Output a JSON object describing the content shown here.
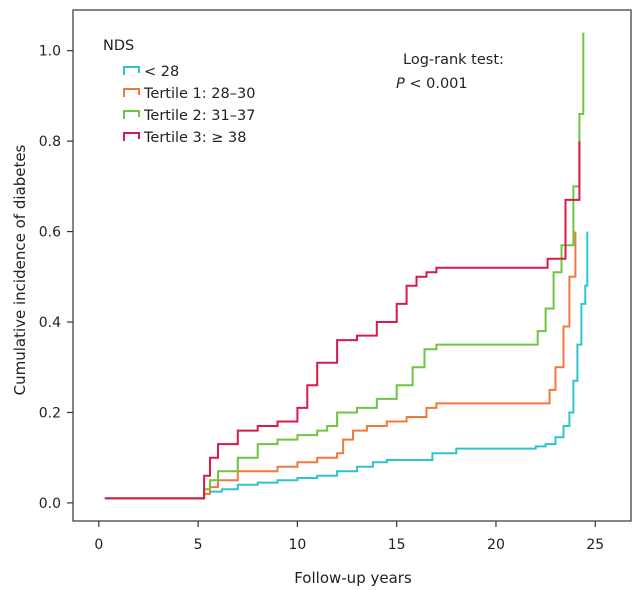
{
  "chart_data": {
    "type": "line",
    "step": true,
    "title": "",
    "xlabel": "Follow-up years",
    "ylabel": "Cumulative incidence of diabetes",
    "xlim": [
      -1.3,
      26.8
    ],
    "ylim": [
      -0.04,
      1.09
    ],
    "xticks": [
      0,
      5,
      10,
      15,
      20,
      25
    ],
    "yticks": [
      0.0,
      0.2,
      0.4,
      0.6,
      0.8,
      1.0
    ],
    "xtick_labels": [
      "0",
      "5",
      "10",
      "15",
      "20",
      "25"
    ],
    "ytick_labels": [
      "0.0",
      "0.2",
      "0.4",
      "0.6",
      "0.8",
      "1.0"
    ],
    "legend": {
      "title": "NDS",
      "placement": "top-left"
    },
    "annotation": {
      "line1": "Log-rank test:",
      "line2_italic": "P",
      "line2_rest": " < 0.001"
    },
    "series": [
      {
        "name": "< 28",
        "color": "#2ec4cf",
        "points": [
          [
            0.3,
            0.01
          ],
          [
            5.1,
            0.01
          ],
          [
            5.3,
            0.02
          ],
          [
            5.6,
            0.025
          ],
          [
            6.2,
            0.03
          ],
          [
            7.0,
            0.04
          ],
          [
            8.0,
            0.045
          ],
          [
            9.0,
            0.05
          ],
          [
            10.0,
            0.055
          ],
          [
            11.0,
            0.06
          ],
          [
            12.0,
            0.07
          ],
          [
            13.0,
            0.08
          ],
          [
            13.8,
            0.09
          ],
          [
            14.5,
            0.095
          ],
          [
            16.0,
            0.095
          ],
          [
            16.8,
            0.11
          ],
          [
            18.0,
            0.12
          ],
          [
            19.0,
            0.12
          ],
          [
            21.0,
            0.12
          ],
          [
            22.0,
            0.125
          ],
          [
            22.5,
            0.13
          ],
          [
            23.0,
            0.145
          ],
          [
            23.4,
            0.17
          ],
          [
            23.7,
            0.2
          ],
          [
            23.9,
            0.27
          ],
          [
            24.1,
            0.35
          ],
          [
            24.3,
            0.44
          ],
          [
            24.5,
            0.48
          ],
          [
            24.6,
            0.6
          ]
        ]
      },
      {
        "name": "Tertile 1: 28–30",
        "color": "#f07a3c",
        "points": [
          [
            0.3,
            0.01
          ],
          [
            5.1,
            0.01
          ],
          [
            5.3,
            0.02
          ],
          [
            5.6,
            0.035
          ],
          [
            6.0,
            0.05
          ],
          [
            7.0,
            0.07
          ],
          [
            8.0,
            0.07
          ],
          [
            9.0,
            0.08
          ],
          [
            10.0,
            0.09
          ],
          [
            11.0,
            0.1
          ],
          [
            12.0,
            0.11
          ],
          [
            12.3,
            0.14
          ],
          [
            12.8,
            0.16
          ],
          [
            13.5,
            0.17
          ],
          [
            14.5,
            0.18
          ],
          [
            15.5,
            0.19
          ],
          [
            16.5,
            0.21
          ],
          [
            17.0,
            0.22
          ],
          [
            18.5,
            0.22
          ],
          [
            20.0,
            0.22
          ],
          [
            21.0,
            0.22
          ],
          [
            22.2,
            0.22
          ],
          [
            22.7,
            0.25
          ],
          [
            23.0,
            0.3
          ],
          [
            23.4,
            0.39
          ],
          [
            23.7,
            0.5
          ],
          [
            24.0,
            0.6
          ]
        ]
      },
      {
        "name": "Tertile 2: 31–37",
        "color": "#6cc640",
        "points": [
          [
            0.3,
            0.01
          ],
          [
            5.1,
            0.01
          ],
          [
            5.3,
            0.03
          ],
          [
            5.6,
            0.05
          ],
          [
            6.0,
            0.07
          ],
          [
            7.0,
            0.1
          ],
          [
            8.0,
            0.13
          ],
          [
            9.0,
            0.14
          ],
          [
            10.0,
            0.15
          ],
          [
            11.0,
            0.16
          ],
          [
            11.5,
            0.17
          ],
          [
            12.0,
            0.2
          ],
          [
            13.0,
            0.21
          ],
          [
            14.0,
            0.23
          ],
          [
            15.0,
            0.26
          ],
          [
            15.8,
            0.3
          ],
          [
            16.4,
            0.34
          ],
          [
            17.0,
            0.35
          ],
          [
            18.0,
            0.35
          ],
          [
            19.0,
            0.35
          ],
          [
            20.0,
            0.35
          ],
          [
            21.8,
            0.35
          ],
          [
            22.1,
            0.38
          ],
          [
            22.5,
            0.43
          ],
          [
            22.9,
            0.51
          ],
          [
            23.3,
            0.57
          ],
          [
            23.6,
            0.57
          ],
          [
            23.9,
            0.7
          ],
          [
            24.2,
            0.86
          ],
          [
            24.4,
            1.04
          ]
        ]
      },
      {
        "name": "Tertile 3: ≥ 38",
        "color": "#d81b4a",
        "points": [
          [
            0.3,
            0.01
          ],
          [
            5.1,
            0.01
          ],
          [
            5.3,
            0.06
          ],
          [
            5.6,
            0.1
          ],
          [
            6.0,
            0.13
          ],
          [
            7.0,
            0.16
          ],
          [
            8.0,
            0.17
          ],
          [
            9.0,
            0.18
          ],
          [
            10.0,
            0.21
          ],
          [
            10.5,
            0.26
          ],
          [
            11.0,
            0.31
          ],
          [
            12.0,
            0.36
          ],
          [
            13.0,
            0.37
          ],
          [
            14.0,
            0.4
          ],
          [
            15.0,
            0.44
          ],
          [
            15.5,
            0.48
          ],
          [
            16.0,
            0.5
          ],
          [
            16.5,
            0.51
          ],
          [
            17.0,
            0.52
          ],
          [
            18.0,
            0.52
          ],
          [
            20.0,
            0.52
          ],
          [
            21.0,
            0.52
          ],
          [
            22.0,
            0.52
          ],
          [
            22.6,
            0.54
          ],
          [
            23.2,
            0.54
          ],
          [
            23.5,
            0.67
          ],
          [
            24.0,
            0.67
          ],
          [
            24.2,
            0.8
          ]
        ]
      }
    ]
  }
}
